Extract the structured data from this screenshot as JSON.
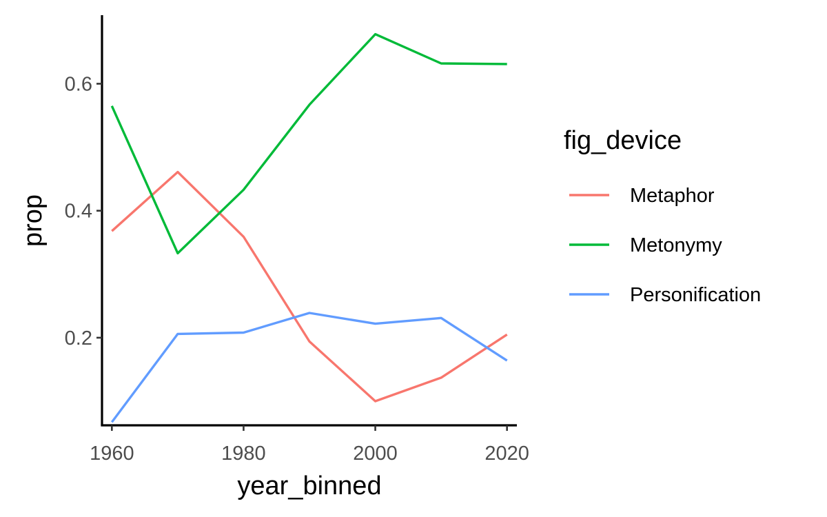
{
  "chart_data": {
    "type": "line",
    "xlabel": "year_binned",
    "ylabel": "prop",
    "x": [
      1960,
      1970,
      1980,
      1990,
      2000,
      2010,
      2020
    ],
    "xticks": [
      1960,
      1980,
      2000,
      2020
    ],
    "yticks": [
      0.2,
      0.4,
      0.6
    ],
    "ytick_labels": [
      "0.2",
      "0.4",
      "0.6"
    ],
    "xlim": [
      1958.5,
      2021.5
    ],
    "ylim": [
      0.062,
      0.708
    ],
    "grid": false,
    "legend": {
      "title": "fig_device",
      "position": "right"
    },
    "series": [
      {
        "name": "Metaphor",
        "color": "#F8766D",
        "values": [
          0.368,
          0.461,
          0.359,
          0.194,
          0.1,
          0.137,
          0.205
        ]
      },
      {
        "name": "Metonymy",
        "color": "#00BA38",
        "values": [
          0.565,
          0.333,
          0.433,
          0.567,
          0.678,
          0.632,
          0.631
        ]
      },
      {
        "name": "Personification",
        "color": "#619CFF",
        "values": [
          0.067,
          0.206,
          0.208,
          0.239,
          0.222,
          0.231,
          0.164
        ]
      }
    ]
  }
}
